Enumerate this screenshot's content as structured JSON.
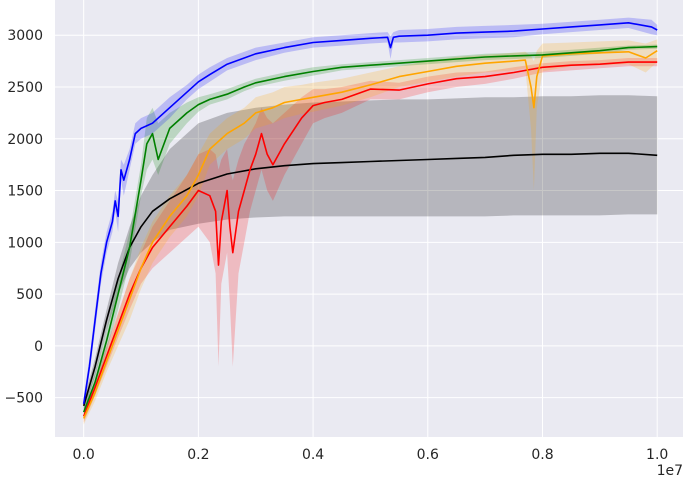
{
  "chart_data": {
    "type": "line",
    "title": "",
    "xlabel": "",
    "ylabel": "",
    "x_offset_label": "1e7",
    "xlim": [
      -0.05,
      1.045
    ],
    "ylim": [
      -880,
      3340
    ],
    "x_ticks": [
      0.0,
      0.2,
      0.4,
      0.6,
      0.8,
      1.0
    ],
    "x_tick_labels": [
      "0.0",
      "0.2",
      "0.4",
      "0.6",
      "0.8",
      "1.0"
    ],
    "y_ticks": [
      -500,
      0,
      500,
      1000,
      1500,
      2000,
      2500,
      3000
    ],
    "y_tick_labels": [
      "−500",
      "0",
      "500",
      "1000",
      "1500",
      "2000",
      "2500",
      "3000"
    ],
    "grid": true,
    "background": "#eaeaf2",
    "series": [
      {
        "color": "#000000",
        "x": [
          0.0,
          0.02,
          0.04,
          0.06,
          0.08,
          0.1,
          0.12,
          0.15,
          0.2,
          0.25,
          0.3,
          0.35,
          0.4,
          0.45,
          0.5,
          0.55,
          0.6,
          0.65,
          0.7,
          0.75,
          0.8,
          0.85,
          0.9,
          0.95,
          1.0
        ],
        "y": [
          -580,
          -200,
          250,
          650,
          950,
          1150,
          1300,
          1420,
          1570,
          1660,
          1710,
          1740,
          1760,
          1770,
          1780,
          1790,
          1800,
          1810,
          1820,
          1840,
          1850,
          1850,
          1860,
          1860,
          1840
        ],
        "upper": [
          -520,
          -120,
          350,
          800,
          1150,
          1450,
          1650,
          1900,
          2150,
          2250,
          2300,
          2330,
          2350,
          2360,
          2370,
          2380,
          2380,
          2390,
          2400,
          2400,
          2410,
          2410,
          2420,
          2420,
          2410
        ],
        "lower": [
          -640,
          -290,
          150,
          500,
          750,
          900,
          1000,
          1120,
          1180,
          1220,
          1240,
          1250,
          1250,
          1250,
          1250,
          1250,
          1250,
          1250,
          1250,
          1260,
          1260,
          1260,
          1260,
          1270,
          1270
        ]
      },
      {
        "color": "#ff0000",
        "x": [
          0.0,
          0.02,
          0.04,
          0.06,
          0.08,
          0.1,
          0.12,
          0.15,
          0.18,
          0.2,
          0.22,
          0.23,
          0.235,
          0.24,
          0.25,
          0.255,
          0.26,
          0.27,
          0.28,
          0.29,
          0.3,
          0.31,
          0.32,
          0.33,
          0.35,
          0.38,
          0.4,
          0.42,
          0.45,
          0.5,
          0.55,
          0.6,
          0.65,
          0.7,
          0.75,
          0.8,
          0.85,
          0.9,
          0.95,
          1.0
        ],
        "y": [
          -680,
          -400,
          -100,
          200,
          500,
          750,
          950,
          1150,
          1350,
          1500,
          1450,
          1300,
          780,
          1200,
          1500,
          1150,
          900,
          1300,
          1500,
          1700,
          1850,
          2050,
          1850,
          1750,
          1950,
          2200,
          2320,
          2350,
          2380,
          2480,
          2470,
          2530,
          2580,
          2600,
          2640,
          2690,
          2710,
          2720,
          2740,
          2740
        ],
        "upper": [
          -620,
          -330,
          0,
          320,
          650,
          900,
          1150,
          1400,
          1650,
          1850,
          1900,
          1850,
          1700,
          1800,
          1900,
          1700,
          1600,
          1800,
          1950,
          2050,
          2150,
          2300,
          2200,
          2150,
          2250,
          2400,
          2480,
          2480,
          2500,
          2560,
          2540,
          2600,
          2640,
          2650,
          2690,
          2730,
          2750,
          2760,
          2780,
          2780
        ],
        "lower": [
          -740,
          -480,
          -200,
          80,
          350,
          600,
          750,
          900,
          1050,
          1150,
          1000,
          700,
          -200,
          600,
          900,
          400,
          -200,
          700,
          1000,
          1300,
          1500,
          1700,
          1500,
          1400,
          1650,
          1950,
          2150,
          2200,
          2250,
          2380,
          2380,
          2450,
          2500,
          2530,
          2580,
          2640,
          2660,
          2680,
          2700,
          2700
        ]
      },
      {
        "color": "#ffa500",
        "x": [
          0.0,
          0.02,
          0.04,
          0.06,
          0.08,
          0.1,
          0.12,
          0.15,
          0.18,
          0.2,
          0.22,
          0.25,
          0.28,
          0.3,
          0.33,
          0.35,
          0.38,
          0.4,
          0.45,
          0.5,
          0.55,
          0.6,
          0.65,
          0.7,
          0.75,
          0.77,
          0.78,
          0.785,
          0.79,
          0.8,
          0.85,
          0.9,
          0.95,
          0.98,
          1.0
        ],
        "y": [
          -700,
          -450,
          -150,
          150,
          450,
          750,
          1000,
          1250,
          1450,
          1650,
          1900,
          2050,
          2150,
          2250,
          2300,
          2350,
          2380,
          2400,
          2450,
          2520,
          2600,
          2650,
          2700,
          2730,
          2750,
          2760,
          2500,
          2300,
          2600,
          2800,
          2820,
          2830,
          2840,
          2780,
          2850
        ],
        "upper": [
          -640,
          -370,
          -50,
          300,
          650,
          950,
          1200,
          1450,
          1650,
          1850,
          2050,
          2200,
          2300,
          2400,
          2450,
          2500,
          2520,
          2540,
          2580,
          2640,
          2700,
          2750,
          2790,
          2810,
          2830,
          2840,
          2800,
          2750,
          2850,
          2920,
          2930,
          2940,
          2950,
          2920,
          2960
        ],
        "lower": [
          -760,
          -530,
          -250,
          0,
          250,
          550,
          800,
          1050,
          1250,
          1450,
          1750,
          1900,
          2000,
          2100,
          2150,
          2200,
          2240,
          2260,
          2320,
          2400,
          2500,
          2550,
          2600,
          2640,
          2660,
          2680,
          2100,
          1500,
          2300,
          2650,
          2700,
          2710,
          2720,
          2640,
          2740
        ]
      },
      {
        "color": "#008000",
        "x": [
          0.0,
          0.02,
          0.04,
          0.06,
          0.08,
          0.1,
          0.11,
          0.12,
          0.13,
          0.15,
          0.18,
          0.2,
          0.22,
          0.25,
          0.28,
          0.3,
          0.35,
          0.4,
          0.45,
          0.5,
          0.55,
          0.6,
          0.65,
          0.7,
          0.75,
          0.8,
          0.85,
          0.9,
          0.95,
          1.0
        ],
        "y": [
          -640,
          -350,
          50,
          500,
          950,
          1600,
          1950,
          2050,
          1800,
          2100,
          2250,
          2330,
          2380,
          2430,
          2500,
          2540,
          2600,
          2650,
          2690,
          2710,
          2730,
          2750,
          2770,
          2790,
          2800,
          2810,
          2830,
          2850,
          2880,
          2890
        ],
        "upper": [
          -580,
          -270,
          150,
          650,
          1100,
          1750,
          2200,
          2300,
          2150,
          2250,
          2350,
          2400,
          2430,
          2480,
          2540,
          2580,
          2640,
          2690,
          2720,
          2740,
          2760,
          2780,
          2800,
          2820,
          2830,
          2840,
          2860,
          2880,
          2900,
          2910
        ],
        "lower": [
          -700,
          -430,
          -50,
          350,
          800,
          1450,
          1700,
          1800,
          1650,
          1950,
          2150,
          2260,
          2330,
          2380,
          2460,
          2500,
          2560,
          2610,
          2660,
          2680,
          2700,
          2720,
          2740,
          2760,
          2770,
          2780,
          2800,
          2820,
          2860,
          2870
        ]
      },
      {
        "color": "#0000ff",
        "x": [
          0.0,
          0.01,
          0.02,
          0.03,
          0.04,
          0.05,
          0.055,
          0.06,
          0.065,
          0.07,
          0.08,
          0.09,
          0.1,
          0.12,
          0.15,
          0.18,
          0.2,
          0.22,
          0.25,
          0.3,
          0.35,
          0.4,
          0.45,
          0.5,
          0.53,
          0.535,
          0.54,
          0.55,
          0.6,
          0.65,
          0.7,
          0.75,
          0.8,
          0.85,
          0.9,
          0.95,
          0.99,
          1.0
        ],
        "y": [
          -560,
          -200,
          250,
          700,
          1000,
          1200,
          1400,
          1250,
          1700,
          1600,
          1800,
          2050,
          2100,
          2150,
          2300,
          2450,
          2550,
          2620,
          2720,
          2820,
          2880,
          2930,
          2950,
          2970,
          2980,
          2880,
          2980,
          2990,
          3000,
          3020,
          3030,
          3040,
          3060,
          3080,
          3100,
          3120,
          3080,
          3050
        ],
        "upper": [
          -500,
          -120,
          350,
          800,
          1100,
          1300,
          1500,
          1400,
          1800,
          1750,
          1900,
          2150,
          2200,
          2250,
          2400,
          2520,
          2620,
          2690,
          2780,
          2880,
          2930,
          2980,
          3000,
          3020,
          3030,
          2990,
          3030,
          3050,
          3060,
          3080,
          3090,
          3100,
          3110,
          3130,
          3150,
          3170,
          3150,
          3100
        ],
        "lower": [
          -620,
          -280,
          150,
          600,
          900,
          1100,
          1300,
          1100,
          1600,
          1450,
          1700,
          1950,
          2000,
          2050,
          2200,
          2380,
          2480,
          2550,
          2660,
          2760,
          2830,
          2880,
          2900,
          2920,
          2930,
          2770,
          2930,
          2930,
          2940,
          2960,
          2970,
          2980,
          3010,
          3030,
          3050,
          3070,
          3010,
          3000
        ]
      }
    ]
  }
}
